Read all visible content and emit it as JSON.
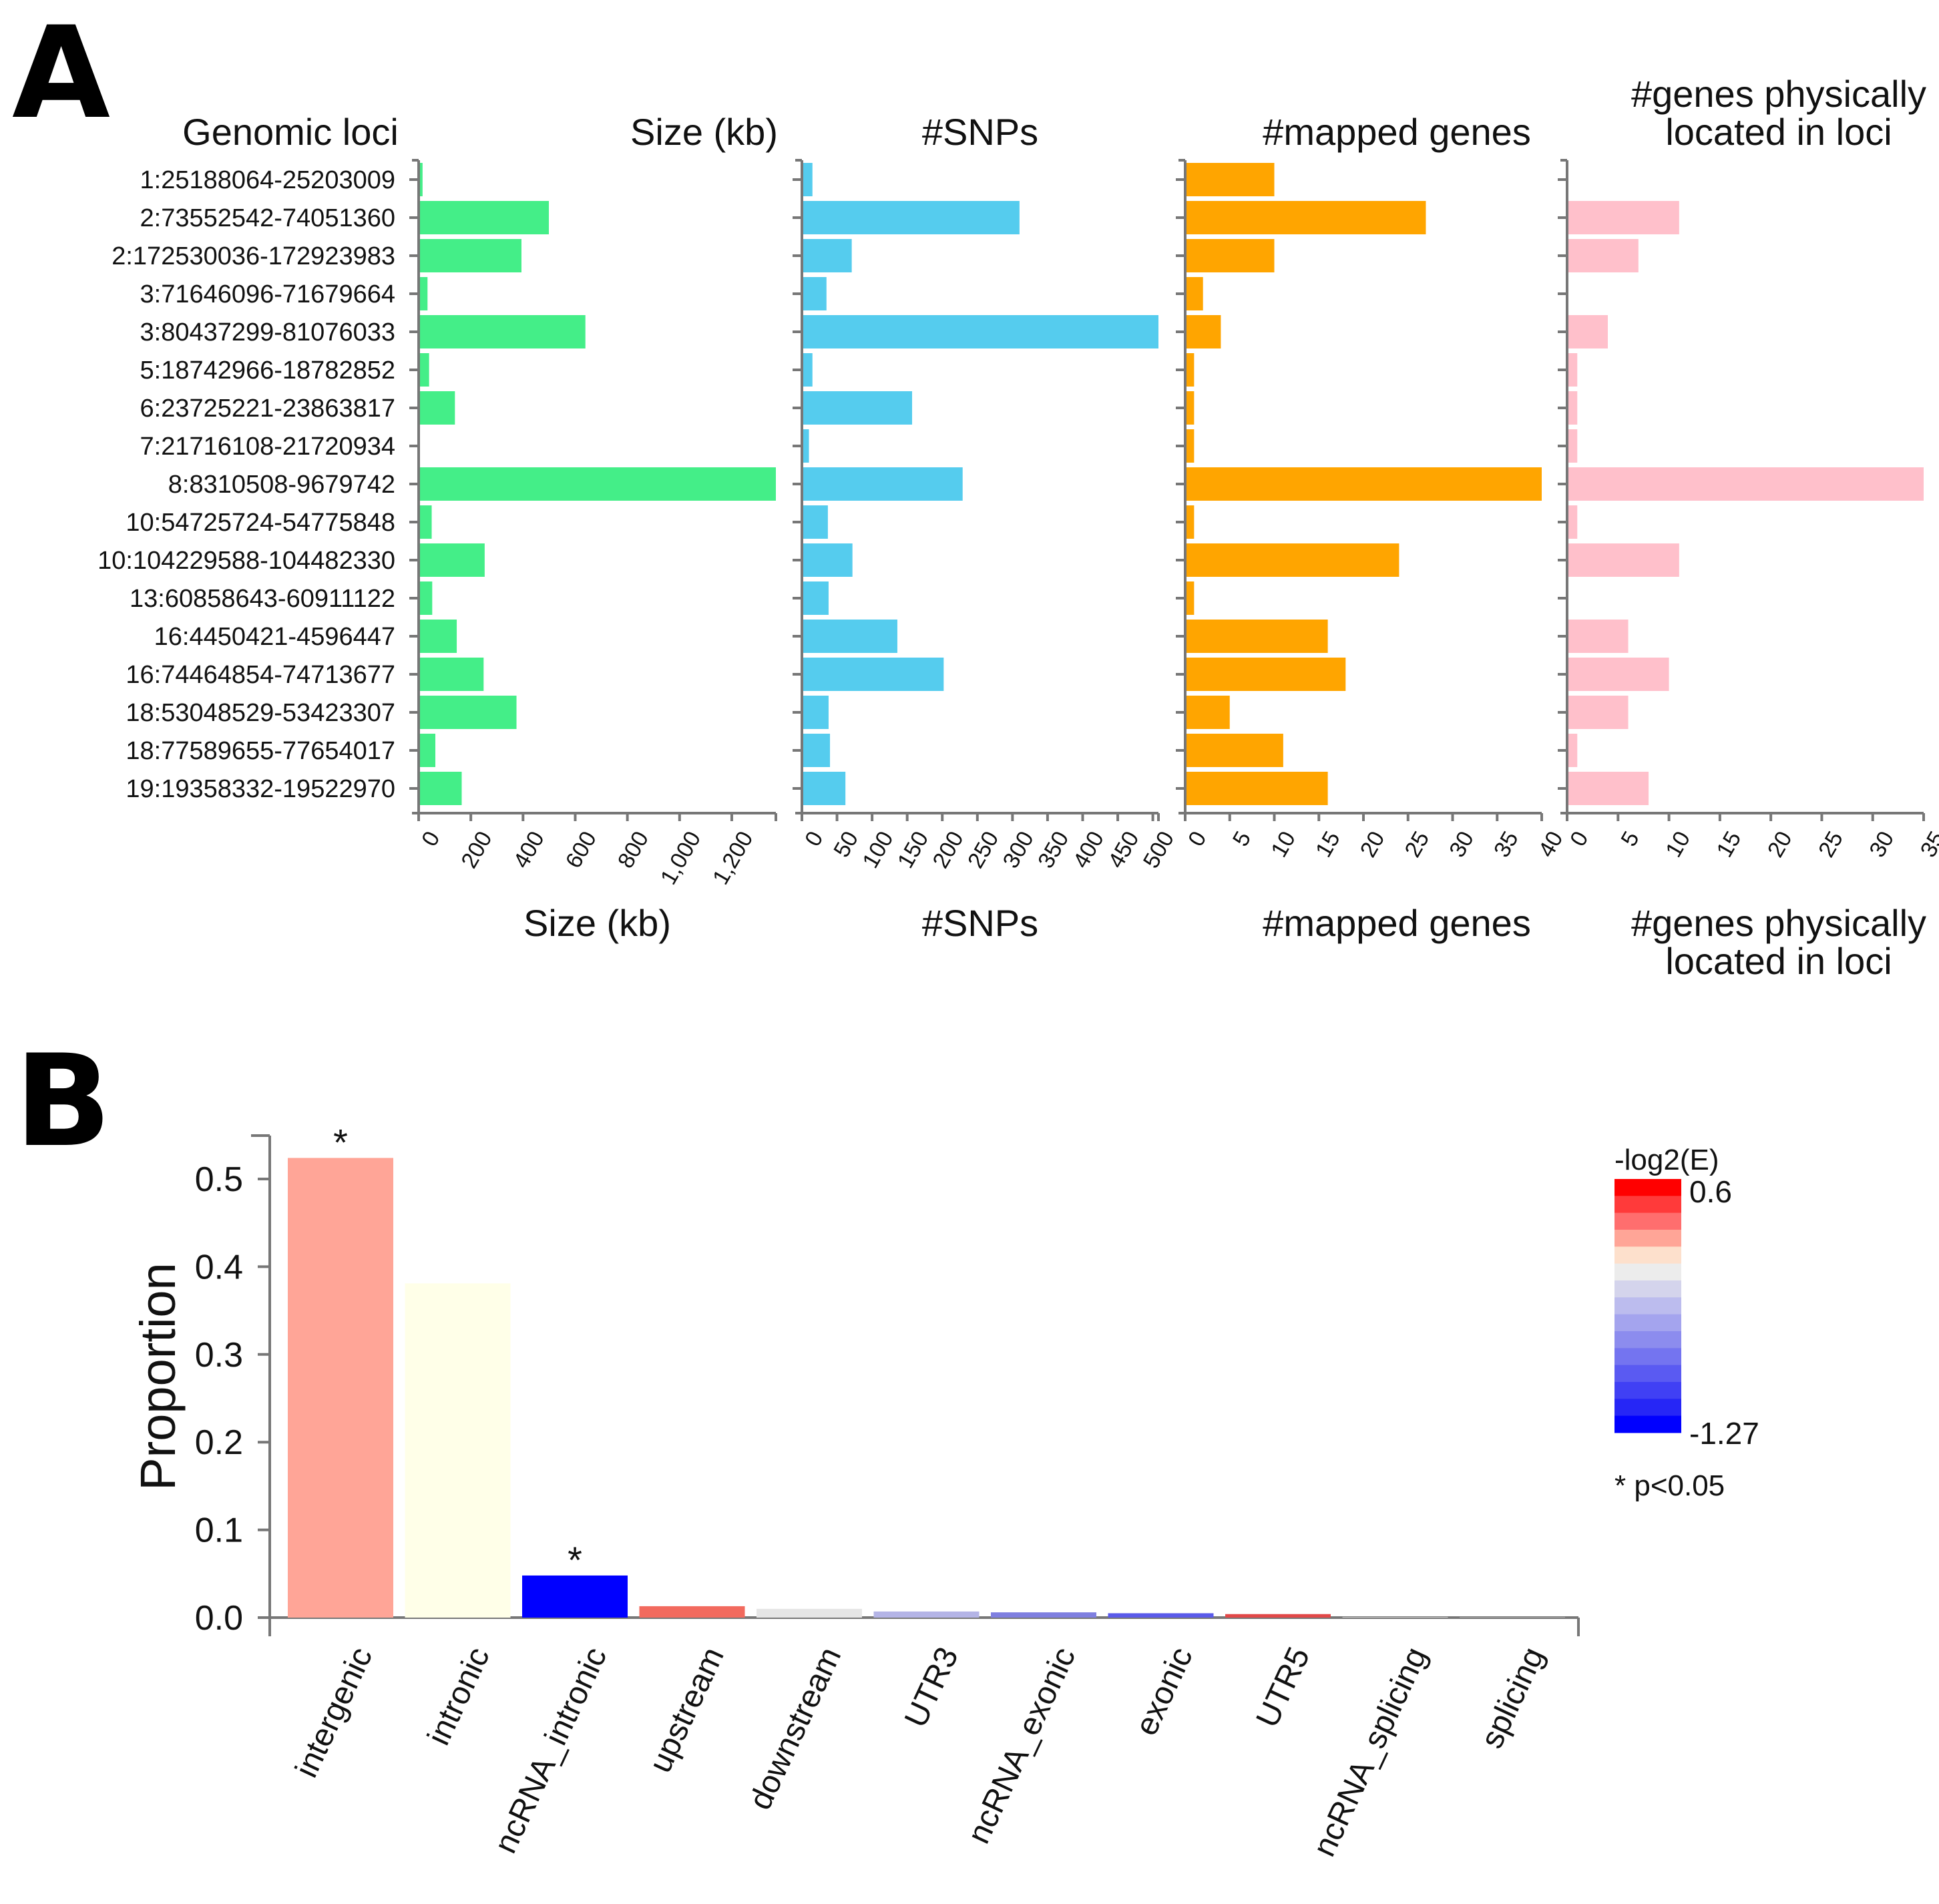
{
  "panels": {
    "a_label": "A",
    "b_label": "B"
  },
  "panel_a": {
    "loci_header": "Genomic loci",
    "loci": [
      "1:25188064-25203009",
      "2:73552542-74051360",
      "2:172530036-172923983",
      "3:71646096-71679664",
      "3:80437299-81076033",
      "5:18742966-18782852",
      "6:23725221-23863817",
      "7:21716108-21720934",
      "8:8310508-9679742",
      "10:54725724-54775848",
      "10:104229588-104482330",
      "13:60858643-60911122",
      "16:4450421-4596447",
      "16:74464854-74713677",
      "18:53048529-53423307",
      "18:77589655-77654017",
      "19:19358332-19522970"
    ]
  },
  "panel_b": {
    "legend": {
      "title": "-log2(E)",
      "max_label": "0.6",
      "min_label": "-1.27",
      "note": "* p<0.05"
    }
  },
  "chart_data": [
    {
      "type": "bar",
      "orientation": "horizontal",
      "title": "Size (kb)",
      "xlabel": "Size (kb)",
      "color": "#44ee88",
      "categories_ref": "panel_a.loci",
      "values": [
        15,
        499,
        394,
        34,
        639,
        40,
        139,
        5,
        1369,
        50,
        253,
        52,
        146,
        249,
        375,
        64,
        165
      ],
      "xlim": [
        0,
        1369
      ],
      "ticks": [
        "0",
        "200",
        "400",
        "600",
        "800",
        "1,000",
        "1,200"
      ],
      "tick_values": [
        0,
        200,
        400,
        600,
        800,
        1000,
        1200
      ]
    },
    {
      "type": "bar",
      "orientation": "horizontal",
      "title": "#SNPs",
      "xlabel": "#SNPs",
      "color": "#55ccee",
      "categories_ref": "panel_a.loci",
      "values": [
        15,
        310,
        71,
        35,
        508,
        15,
        157,
        10,
        229,
        37,
        72,
        38,
        136,
        202,
        38,
        40,
        62
      ],
      "xlim": [
        0,
        508
      ],
      "ticks": [
        "0",
        "50",
        "100",
        "150",
        "200",
        "250",
        "300",
        "350",
        "400",
        "450",
        "500"
      ],
      "tick_values": [
        0,
        50,
        100,
        150,
        200,
        250,
        300,
        350,
        400,
        450,
        500
      ]
    },
    {
      "type": "bar",
      "orientation": "horizontal",
      "title": "#mapped genes",
      "xlabel": "#mapped genes",
      "color": "#ffa500",
      "categories_ref": "panel_a.loci",
      "values": [
        10,
        27,
        10,
        2,
        4,
        1,
        1,
        1,
        40,
        1,
        24,
        1,
        16,
        18,
        5,
        11,
        16
      ],
      "xlim": [
        0,
        40
      ],
      "ticks": [
        "0",
        "5",
        "10",
        "15",
        "20",
        "25",
        "30",
        "35",
        "40"
      ],
      "tick_values": [
        0,
        5,
        10,
        15,
        20,
        25,
        30,
        35,
        40
      ]
    },
    {
      "type": "bar",
      "orientation": "horizontal",
      "title_lines": [
        "#genes physically",
        "located in loci"
      ],
      "xlabel_lines": [
        "#genes physically",
        "located in loci"
      ],
      "color": "#ffc0cb",
      "categories_ref": "panel_a.loci",
      "values": [
        0,
        11,
        7,
        0,
        4,
        1,
        1,
        1,
        35,
        1,
        11,
        0,
        6,
        10,
        6,
        1,
        8
      ],
      "xlim": [
        0,
        35
      ],
      "ticks": [
        "0",
        "5",
        "10",
        "15",
        "20",
        "25",
        "30",
        "35"
      ],
      "tick_values": [
        0,
        5,
        10,
        15,
        20,
        25,
        30,
        35
      ]
    },
    {
      "type": "bar",
      "orientation": "vertical",
      "ylabel": "Proportion",
      "categories": [
        "intergenic",
        "intronic",
        "ncRNA_intronic",
        "upstream",
        "downstream",
        "UTR3",
        "ncRNA_exonic",
        "exonic",
        "UTR5",
        "ncRNA_splicing",
        "splicing"
      ],
      "values": [
        0.524,
        0.381,
        0.048,
        0.013,
        0.01,
        0.007,
        0.006,
        0.005,
        0.004,
        0.0005,
        0.0003
      ],
      "colors": [
        "#ffa597",
        "#ffffe8",
        "#0000ff",
        "#f26a5e",
        "#e6e6e6",
        "#b4b4e6",
        "#7f7fe0",
        "#5a5aea",
        "#e24848",
        "#ffffff",
        "#ffffff"
      ],
      "significant": [
        true,
        false,
        true,
        false,
        false,
        false,
        false,
        false,
        false,
        false,
        false
      ],
      "star_label": "*",
      "ylim": [
        0,
        0.55
      ],
      "yticks": [
        "0.0",
        "0.1",
        "0.2",
        "0.3",
        "0.4",
        "0.5"
      ],
      "ytick_values": [
        0,
        0.1,
        0.2,
        0.3,
        0.4,
        0.5
      ],
      "colorscale": {
        "max": 0.6,
        "min": -1.27,
        "steps": [
          "#ff0000",
          "#ff3a3a",
          "#ff6e6e",
          "#ffa597",
          "#fde0cc",
          "#ececec",
          "#d4d4ec",
          "#bcbcee",
          "#a4a4ee",
          "#8c8cee",
          "#7474f0",
          "#5a5af2",
          "#4040f4",
          "#2626f6",
          "#0000ff"
        ]
      }
    }
  ]
}
